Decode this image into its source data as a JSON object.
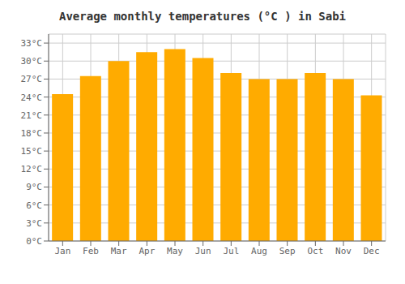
{
  "chart_data": {
    "type": "bar",
    "title": "Average monthly temperatures (°C ) in Sabi",
    "categories": [
      "Jan",
      "Feb",
      "Mar",
      "Apr",
      "May",
      "Jun",
      "Jul",
      "Aug",
      "Sep",
      "Oct",
      "Nov",
      "Dec"
    ],
    "values": [
      24.5,
      27.5,
      30.0,
      31.5,
      32.0,
      30.5,
      28.0,
      27.0,
      27.0,
      28.0,
      27.0,
      24.3
    ],
    "color": "#FFAB00",
    "ylim": [
      0,
      34.5
    ],
    "yticks": [
      {
        "value": 0,
        "label": "0°C"
      },
      {
        "value": 3,
        "label": "3°C"
      },
      {
        "value": 6,
        "label": "6°C"
      },
      {
        "value": 9,
        "label": "9°C"
      },
      {
        "value": 12,
        "label": "12°C"
      },
      {
        "value": 15,
        "label": "15°C"
      },
      {
        "value": 18,
        "label": "18°C"
      },
      {
        "value": 21,
        "label": "21°C"
      },
      {
        "value": 24,
        "label": "24°C"
      },
      {
        "value": 27,
        "label": "27°C"
      },
      {
        "value": 30,
        "label": "30°C"
      },
      {
        "value": 33,
        "label": "33°C"
      }
    ],
    "grid": true
  }
}
